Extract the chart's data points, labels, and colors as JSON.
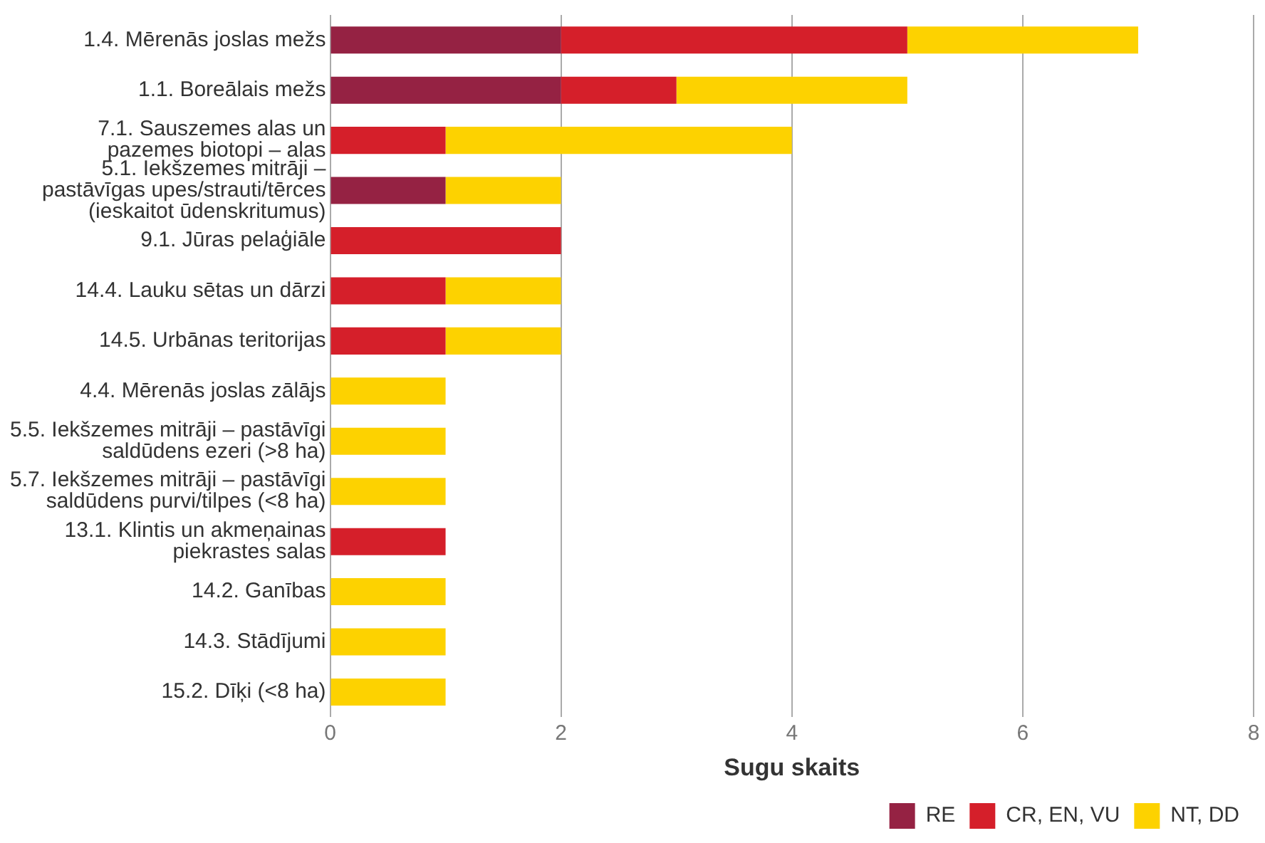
{
  "chart_data": {
    "type": "bar",
    "orientation": "horizontal",
    "stacked": true,
    "xlabel": "Sugu skaits",
    "categories": [
      "1.4. Mērenās joslas mežs",
      "1.1. Boreālais mežs",
      "7.1. Sauszemes alas un\npazemes biotopi – alas",
      "5.1. Iekšzemes mitrāji –\npastāvīgas upes/strauti/tērces\n(ieskaitot ūdenskritumus)",
      "9.1. Jūras pelaģiāle",
      "14.4. Lauku sētas un dārzi",
      "14.5. Urbānas teritorijas",
      "4.4. Mērenās joslas zālājs",
      "5.5. Iekšzemes mitrāji – pastāvīgi\nsaldūdens ezeri (>8 ha)",
      "5.7. Iekšzemes mitrāji – pastāvīgi\nsaldūdens purvi/tilpes (<8 ha)",
      "13.1. Klintis un akmeņainas\npiekrastes salas",
      "14.2. Ganības",
      "14.3. Stādījumi",
      "15.2. Dīķi (<8 ha)"
    ],
    "series": [
      {
        "name": "RE",
        "color": "#952243",
        "values": [
          2,
          2,
          null,
          1,
          null,
          null,
          null,
          null,
          null,
          null,
          null,
          null,
          null,
          null
        ]
      },
      {
        "name": "CR, EN, VU",
        "color": "#d51f2a",
        "values": [
          3,
          1,
          1,
          null,
          2,
          1,
          1,
          null,
          null,
          null,
          1,
          null,
          null,
          null
        ]
      },
      {
        "name": "NT, DD",
        "color": "#fdd200",
        "values": [
          2,
          2,
          3,
          1,
          null,
          1,
          1,
          1,
          1,
          1,
          null,
          1,
          1,
          1
        ]
      }
    ],
    "xlim": [
      0,
      8
    ],
    "xticks": [
      0,
      2,
      4,
      6,
      8
    ],
    "grid": "x",
    "legend": "bottom right"
  }
}
